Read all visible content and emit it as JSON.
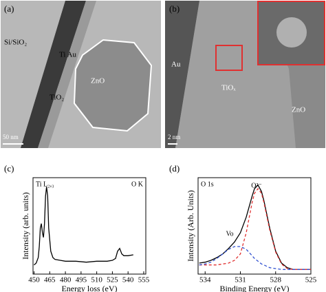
{
  "panels": [
    {
      "label": "(a)",
      "texts": [
        "Si/SiO₂",
        "Ti Au",
        "TiO₂",
        "ZnO"
      ],
      "scale_bar": "50 nm"
    },
    {
      "label": "(b)",
      "texts": [
        "Au",
        "TiOₓ",
        "ZnO"
      ],
      "scale_bar": "2 nm"
    }
  ],
  "chart_data": [
    {
      "type": "line",
      "label": "(c)",
      "x_label": "Energy loss (eV)",
      "y_label": "Intensity (arb. units)",
      "annotations": [
        "Ti L₂,₃",
        "O K"
      ],
      "x": [
        450,
        452,
        454,
        455,
        456,
        457,
        458,
        459,
        460,
        461,
        462,
        463,
        464,
        466,
        468,
        470,
        475,
        480,
        490,
        500,
        510,
        520,
        525,
        528,
        530,
        532,
        534,
        536,
        540,
        545
      ],
      "series": [
        {
          "color": "#000000",
          "values": [
            0.1,
            0.12,
            0.18,
            0.3,
            0.5,
            0.55,
            0.45,
            0.4,
            0.55,
            0.85,
            0.95,
            0.85,
            0.5,
            0.25,
            0.18,
            0.16,
            0.15,
            0.14,
            0.14,
            0.13,
            0.14,
            0.14,
            0.15,
            0.17,
            0.25,
            0.28,
            0.22,
            0.2,
            0.2,
            0.21
          ]
        }
      ],
      "xlim": [
        449,
        557
      ],
      "ylim": [
        0,
        1.05
      ],
      "xticks": [
        450,
        465,
        480,
        495,
        510,
        525,
        540,
        555
      ]
    },
    {
      "type": "line",
      "label": "(d)",
      "x_label": "Binding Energy (eV)",
      "y_label": "Intensity (Arb. Units)",
      "annotations": [
        "O 1s",
        "O²⁻",
        "Vo"
      ],
      "x": [
        534.5,
        534,
        533.5,
        533,
        532.5,
        532,
        531.5,
        531,
        530.5,
        530,
        529.8,
        529.5,
        529.2,
        529,
        528.5,
        528,
        527.5,
        527,
        526.5,
        526,
        525.5,
        525
      ],
      "series": [
        {
          "color": "#000000",
          "dash": false,
          "values": [
            0.12,
            0.13,
            0.15,
            0.18,
            0.22,
            0.28,
            0.35,
            0.45,
            0.62,
            0.85,
            0.93,
            0.97,
            0.9,
            0.8,
            0.5,
            0.25,
            0.12,
            0.07,
            0.05,
            0.05,
            0.05,
            0.05
          ]
        },
        {
          "color": "#e03030",
          "dash": true,
          "values": [
            0.1,
            0.1,
            0.1,
            0.1,
            0.11,
            0.12,
            0.15,
            0.22,
            0.45,
            0.78,
            0.88,
            0.93,
            0.88,
            0.78,
            0.48,
            0.24,
            0.11,
            0.06,
            0.05,
            0.05,
            0.05,
            0.05
          ]
        },
        {
          "color": "#3050d0",
          "dash": true,
          "values": [
            0.1,
            0.11,
            0.13,
            0.17,
            0.22,
            0.27,
            0.3,
            0.3,
            0.27,
            0.2,
            0.17,
            0.14,
            0.11,
            0.1,
            0.07,
            0.06,
            0.05,
            0.05,
            0.05,
            0.05,
            0.05,
            0.05
          ]
        }
      ],
      "xlim": [
        534.6,
        525
      ],
      "ylim": [
        0,
        1.05
      ],
      "xticks": [
        534,
        531,
        528,
        525
      ]
    }
  ]
}
